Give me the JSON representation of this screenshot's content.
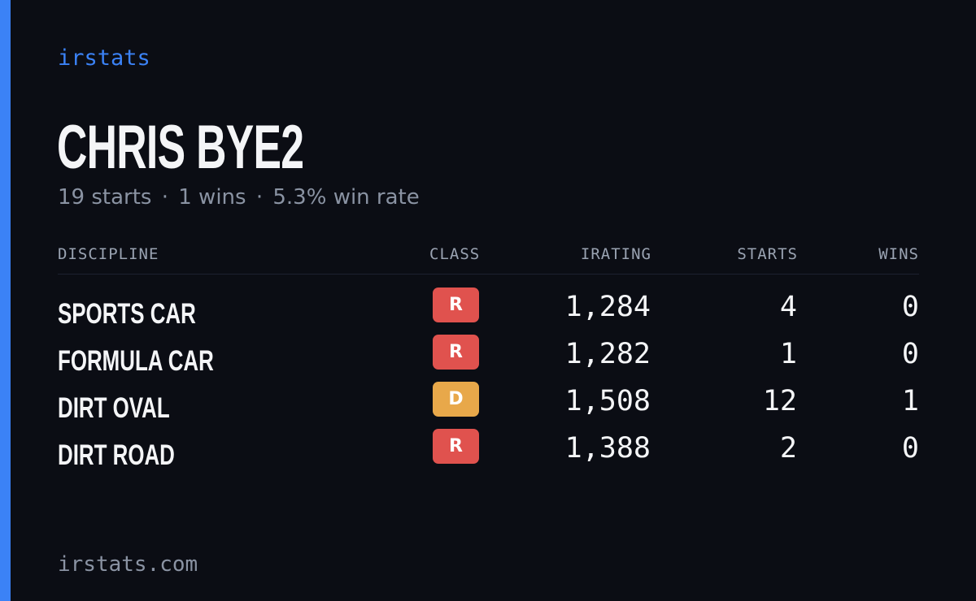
{
  "brand": "irstats",
  "driver": {
    "name": "CHRIS BYE2",
    "starts_text": "19 starts",
    "wins_text": "1 wins",
    "winrate_text": "5.3% win rate",
    "separator": "·"
  },
  "colors": {
    "accent": "#3b82f6",
    "background": "#0b0d14",
    "class_R": "#e0524e",
    "class_D": "#e8a84a"
  },
  "table": {
    "headers": {
      "discipline": "DISCIPLINE",
      "class": "CLASS",
      "irating": "IRATING",
      "starts": "STARTS",
      "wins": "WINS"
    },
    "rows": [
      {
        "discipline": "SPORTS CAR",
        "class": "R",
        "class_color": "#e0524e",
        "irating": "1,284",
        "starts": "4",
        "wins": "0"
      },
      {
        "discipline": "FORMULA CAR",
        "class": "R",
        "class_color": "#e0524e",
        "irating": "1,282",
        "starts": "1",
        "wins": "0"
      },
      {
        "discipline": "DIRT OVAL",
        "class": "D",
        "class_color": "#e8a84a",
        "irating": "1,508",
        "starts": "12",
        "wins": "1"
      },
      {
        "discipline": "DIRT ROAD",
        "class": "R",
        "class_color": "#e0524e",
        "irating": "1,388",
        "starts": "2",
        "wins": "0"
      }
    ]
  },
  "footer": {
    "url": "irstats.com"
  }
}
